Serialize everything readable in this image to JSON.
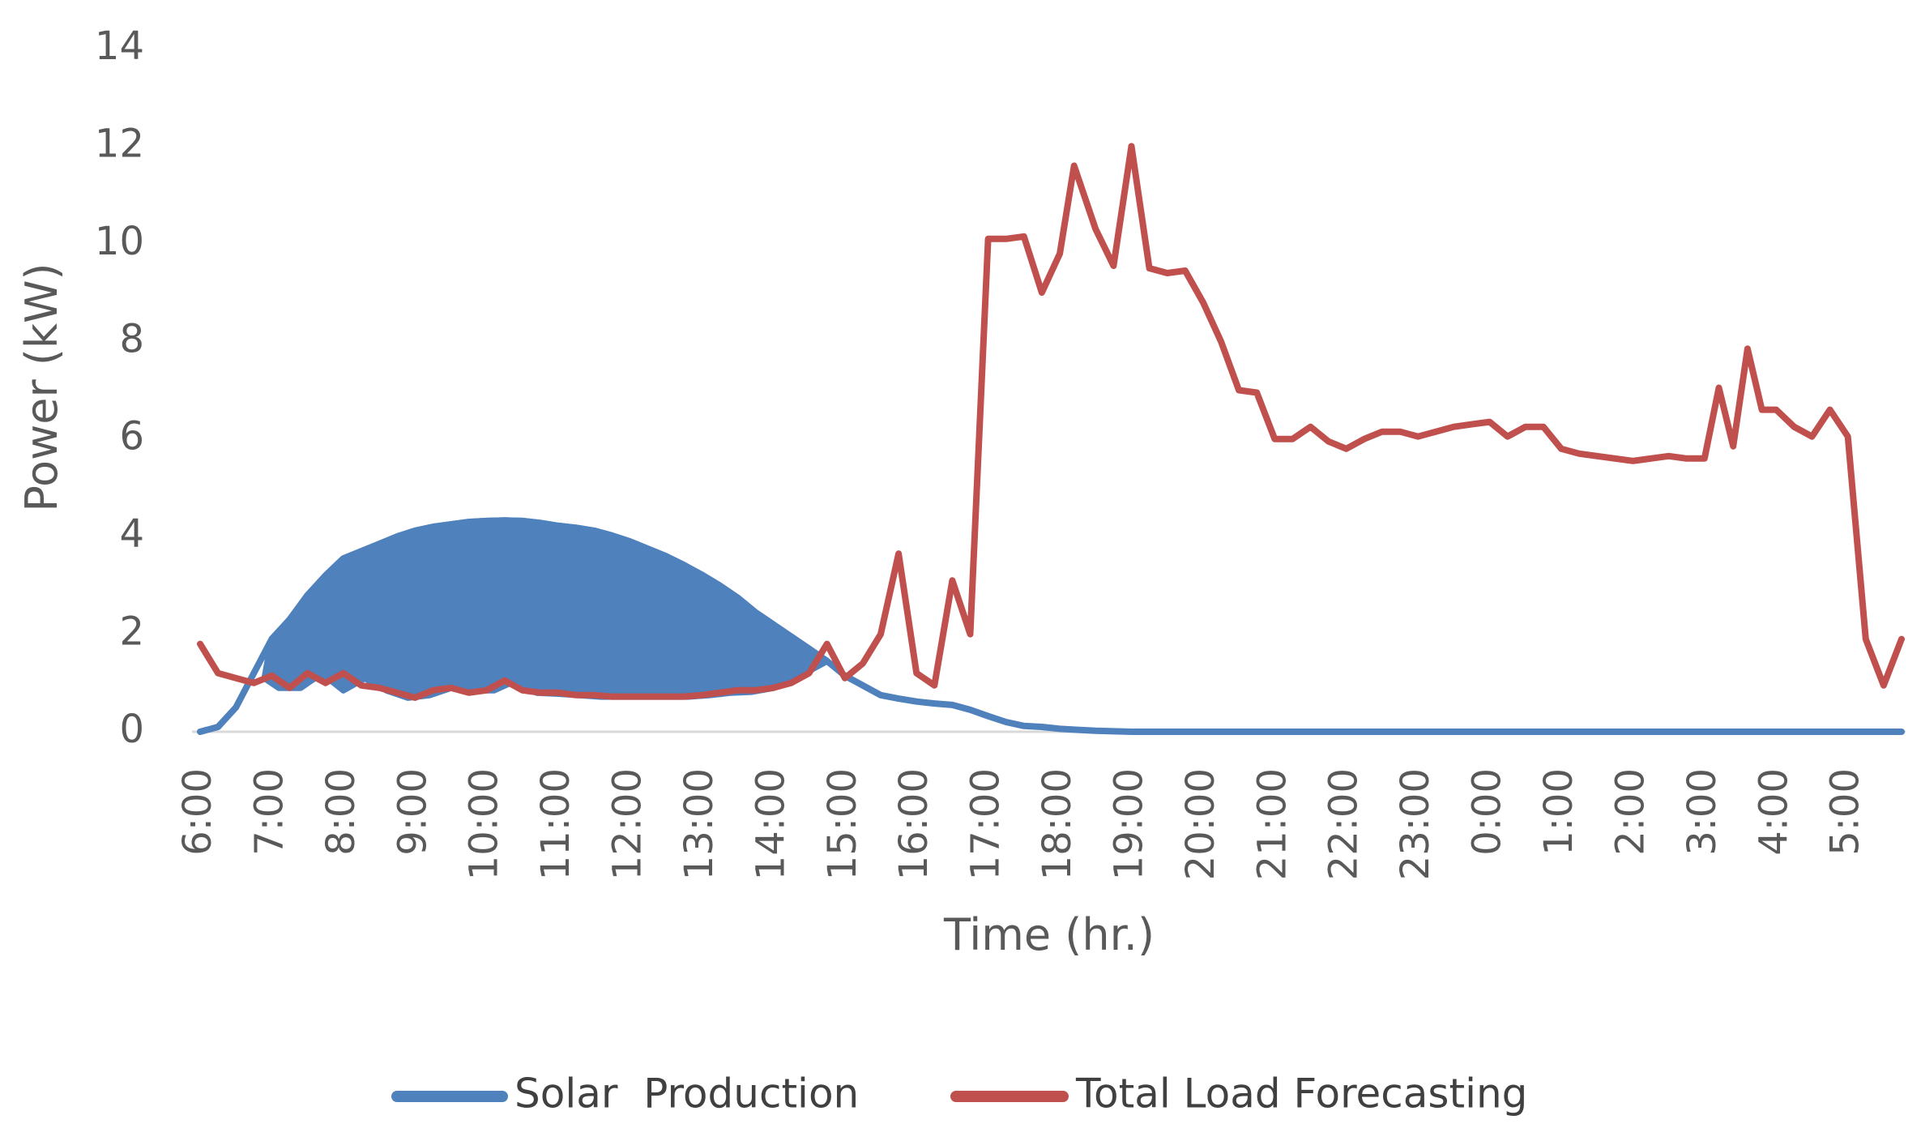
{
  "chart_data": {
    "type": "line",
    "xlabel": "Time (hr.)",
    "ylabel": "Power (kW)",
    "ylim": [
      0,
      14
    ],
    "y_ticks": [
      "0",
      "2",
      "4",
      "6",
      "8",
      "10",
      "12",
      "14"
    ],
    "x_tick_labels": [
      "6:00",
      "7:00",
      "8:00",
      "9:00",
      "10:00",
      "11:00",
      "12:00",
      "13:00",
      "14:00",
      "15:00",
      "16:00",
      "17:00",
      "18:00",
      "19:00",
      "20:00",
      "21:00",
      "22:00",
      "23:00",
      "0:00",
      "1:00",
      "2:00",
      "3:00",
      "4:00",
      "5:00"
    ],
    "grid": false,
    "legend_position": "bottom",
    "series": [
      {
        "name": "Solar  Production",
        "color": "#4f81bd",
        "points": [
          [
            6.0,
            0.0
          ],
          [
            6.25,
            0.1
          ],
          [
            6.5,
            0.5
          ],
          [
            6.75,
            1.2
          ],
          [
            7.0,
            1.9
          ],
          [
            7.25,
            2.3
          ],
          [
            7.5,
            2.8
          ],
          [
            7.75,
            3.2
          ],
          [
            8.0,
            3.55
          ],
          [
            8.25,
            3.7
          ],
          [
            8.5,
            3.85
          ],
          [
            8.75,
            4.0
          ],
          [
            9.0,
            4.12
          ],
          [
            9.25,
            4.2
          ],
          [
            9.5,
            4.25
          ],
          [
            9.75,
            4.3
          ],
          [
            10.0,
            4.32
          ],
          [
            10.25,
            4.33
          ],
          [
            10.5,
            4.32
          ],
          [
            10.75,
            4.28
          ],
          [
            11.0,
            4.22
          ],
          [
            11.25,
            4.18
          ],
          [
            11.5,
            4.12
          ],
          [
            11.75,
            4.02
          ],
          [
            12.0,
            3.9
          ],
          [
            12.25,
            3.75
          ],
          [
            12.5,
            3.6
          ],
          [
            12.75,
            3.42
          ],
          [
            13.0,
            3.22
          ],
          [
            13.25,
            3.0
          ],
          [
            13.5,
            2.75
          ],
          [
            13.75,
            2.45
          ],
          [
            14.0,
            2.2
          ],
          [
            14.25,
            1.95
          ],
          [
            14.5,
            1.7
          ],
          [
            14.75,
            1.45
          ],
          [
            15.0,
            1.15
          ],
          [
            15.25,
            0.95
          ],
          [
            15.5,
            0.75
          ],
          [
            15.75,
            0.68
          ],
          [
            16.0,
            0.62
          ],
          [
            16.25,
            0.58
          ],
          [
            16.5,
            0.55
          ],
          [
            16.75,
            0.45
          ],
          [
            17.0,
            0.32
          ],
          [
            17.25,
            0.2
          ],
          [
            17.5,
            0.12
          ],
          [
            17.75,
            0.1
          ],
          [
            18.0,
            0.06
          ],
          [
            18.25,
            0.04
          ],
          [
            18.5,
            0.02
          ],
          [
            18.75,
            0.01
          ],
          [
            19.0,
            0.0
          ],
          [
            20.0,
            0.0
          ],
          [
            21.0,
            0.0
          ],
          [
            22.0,
            0.0
          ],
          [
            23.0,
            0.0
          ],
          [
            24.0,
            0.0
          ],
          [
            25.0,
            0.0
          ],
          [
            26.0,
            0.0
          ],
          [
            27.0,
            0.0
          ],
          [
            28.0,
            0.0
          ],
          [
            29.0,
            0.0
          ],
          [
            29.75,
            0.0
          ]
        ],
        "fill_lower": [
          [
            6.9,
            1.1
          ],
          [
            7.1,
            0.9
          ],
          [
            7.4,
            0.9
          ],
          [
            7.7,
            1.2
          ],
          [
            8.0,
            0.85
          ],
          [
            8.3,
            1.1
          ],
          [
            8.6,
            0.85
          ],
          [
            8.9,
            0.7
          ],
          [
            9.2,
            0.75
          ],
          [
            9.5,
            0.9
          ],
          [
            9.8,
            0.85
          ],
          [
            10.1,
            0.85
          ],
          [
            10.4,
            1.05
          ],
          [
            10.7,
            0.8
          ],
          [
            11.0,
            0.78
          ],
          [
            11.3,
            0.75
          ],
          [
            11.6,
            0.72
          ],
          [
            12.0,
            0.72
          ],
          [
            12.4,
            0.72
          ],
          [
            12.8,
            0.72
          ],
          [
            13.1,
            0.75
          ],
          [
            13.4,
            0.8
          ],
          [
            13.7,
            0.82
          ],
          [
            14.0,
            0.9
          ],
          [
            14.2,
            1.0
          ],
          [
            14.5,
            1.25
          ],
          [
            14.75,
            1.45
          ]
        ]
      },
      {
        "name": "Total Load Forecasting",
        "color": "#c0504d",
        "points": [
          [
            6.0,
            1.8
          ],
          [
            6.25,
            1.2
          ],
          [
            6.5,
            1.1
          ],
          [
            6.75,
            1.0
          ],
          [
            7.0,
            1.15
          ],
          [
            7.25,
            0.9
          ],
          [
            7.5,
            1.2
          ],
          [
            7.75,
            1.0
          ],
          [
            8.0,
            1.2
          ],
          [
            8.25,
            0.95
          ],
          [
            8.5,
            0.9
          ],
          [
            8.75,
            0.8
          ],
          [
            9.0,
            0.7
          ],
          [
            9.25,
            0.85
          ],
          [
            9.5,
            0.9
          ],
          [
            9.75,
            0.8
          ],
          [
            10.0,
            0.85
          ],
          [
            10.25,
            1.05
          ],
          [
            10.5,
            0.85
          ],
          [
            10.75,
            0.8
          ],
          [
            11.0,
            0.8
          ],
          [
            11.25,
            0.75
          ],
          [
            11.5,
            0.75
          ],
          [
            11.75,
            0.72
          ],
          [
            12.0,
            0.72
          ],
          [
            12.25,
            0.72
          ],
          [
            12.5,
            0.72
          ],
          [
            12.75,
            0.72
          ],
          [
            13.0,
            0.75
          ],
          [
            13.25,
            0.8
          ],
          [
            13.5,
            0.85
          ],
          [
            13.75,
            0.85
          ],
          [
            14.0,
            0.9
          ],
          [
            14.25,
            1.0
          ],
          [
            14.5,
            1.2
          ],
          [
            14.75,
            1.8
          ],
          [
            15.0,
            1.1
          ],
          [
            15.25,
            1.4
          ],
          [
            15.5,
            2.0
          ],
          [
            15.75,
            3.65
          ],
          [
            16.0,
            1.2
          ],
          [
            16.25,
            0.95
          ],
          [
            16.5,
            3.1
          ],
          [
            16.75,
            2.0
          ],
          [
            17.0,
            10.1
          ],
          [
            17.25,
            10.1
          ],
          [
            17.5,
            10.15
          ],
          [
            17.75,
            9.0
          ],
          [
            18.0,
            9.8
          ],
          [
            18.2,
            11.6
          ],
          [
            18.5,
            10.3
          ],
          [
            18.75,
            9.55
          ],
          [
            19.0,
            12.0
          ],
          [
            19.25,
            9.5
          ],
          [
            19.5,
            9.4
          ],
          [
            19.75,
            9.45
          ],
          [
            20.0,
            8.8
          ],
          [
            20.25,
            8.0
          ],
          [
            20.5,
            7.0
          ],
          [
            20.75,
            6.95
          ],
          [
            21.0,
            6.0
          ],
          [
            21.25,
            6.0
          ],
          [
            21.5,
            6.25
          ],
          [
            21.75,
            5.95
          ],
          [
            22.0,
            5.8
          ],
          [
            22.25,
            6.0
          ],
          [
            22.5,
            6.15
          ],
          [
            22.75,
            6.15
          ],
          [
            23.0,
            6.05
          ],
          [
            23.25,
            6.15
          ],
          [
            23.5,
            6.25
          ],
          [
            23.75,
            6.3
          ],
          [
            24.0,
            6.35
          ],
          [
            24.25,
            6.05
          ],
          [
            24.5,
            6.25
          ],
          [
            24.75,
            6.25
          ],
          [
            25.0,
            5.8
          ],
          [
            25.25,
            5.7
          ],
          [
            25.5,
            5.65
          ],
          [
            25.75,
            5.6
          ],
          [
            26.0,
            5.55
          ],
          [
            26.25,
            5.6
          ],
          [
            26.5,
            5.65
          ],
          [
            26.75,
            5.6
          ],
          [
            27.0,
            5.6
          ],
          [
            27.2,
            7.05
          ],
          [
            27.4,
            5.85
          ],
          [
            27.6,
            7.85
          ],
          [
            27.8,
            6.6
          ],
          [
            28.0,
            6.6
          ],
          [
            28.25,
            6.25
          ],
          [
            28.5,
            6.05
          ],
          [
            28.75,
            6.6
          ],
          [
            29.0,
            6.05
          ],
          [
            29.25,
            1.9
          ],
          [
            29.5,
            0.95
          ],
          [
            29.75,
            1.9
          ]
        ]
      }
    ]
  }
}
